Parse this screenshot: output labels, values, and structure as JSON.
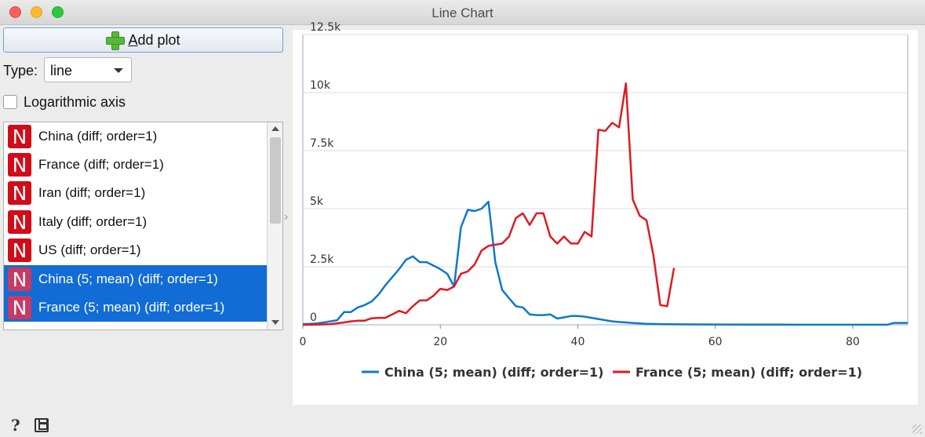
{
  "window": {
    "title": "Line Chart"
  },
  "controls": {
    "add_plot_prefix": "A",
    "add_plot_rest": "dd plot",
    "type_label": "Type:",
    "type_value": "line",
    "log_axis_label": "Logarithmic axis",
    "log_axis_checked": false
  },
  "series_list": [
    {
      "label": "China (diff; order=1)",
      "icon": "N",
      "selected": false
    },
    {
      "label": "France (diff; order=1)",
      "icon": "N",
      "selected": false
    },
    {
      "label": "Iran (diff; order=1)",
      "icon": "N",
      "selected": false
    },
    {
      "label": "Italy (diff; order=1)",
      "icon": "N",
      "selected": false
    },
    {
      "label": "US (diff; order=1)",
      "icon": "N",
      "selected": false
    },
    {
      "label": "China (5; mean) (diff; order=1)",
      "icon": "N",
      "selected": true
    },
    {
      "label": "France (5; mean) (diff; order=1)",
      "icon": "N",
      "selected": true
    }
  ],
  "icons": {
    "add": "plus-icon",
    "help": "help-icon",
    "save": "save-icon"
  },
  "chart_data": {
    "type": "line",
    "xlim": [
      0,
      88
    ],
    "ylim": [
      0,
      12500
    ],
    "x_ticks": [
      0,
      20,
      40,
      60,
      80
    ],
    "y_ticks": [
      0,
      2500,
      5000,
      7500,
      10000,
      12500
    ],
    "y_tick_labels": [
      "0",
      "2.5k",
      "5k",
      "7.5k",
      "10k",
      "12.5k"
    ],
    "grid": true,
    "legend_position": "bottom",
    "series": [
      {
        "name": "China (5; mean) (diff; order=1)",
        "color": "#0d79c9",
        "x": [
          0,
          1,
          2,
          3,
          4,
          5,
          6,
          7,
          8,
          9,
          10,
          11,
          12,
          13,
          14,
          15,
          16,
          17,
          18,
          19,
          20,
          21,
          22,
          23,
          24,
          25,
          26,
          27,
          28,
          29,
          30,
          31,
          32,
          33,
          34,
          35,
          36,
          37,
          38,
          39,
          40,
          41,
          42,
          43,
          44,
          45,
          46,
          47,
          48,
          49,
          50,
          52,
          55,
          60,
          65,
          70,
          75,
          80,
          85,
          86,
          87,
          88
        ],
        "y": [
          30,
          40,
          60,
          100,
          150,
          200,
          550,
          550,
          750,
          850,
          1000,
          1300,
          1700,
          2050,
          2400,
          2800,
          2950,
          2700,
          2700,
          2550,
          2400,
          2200,
          1650,
          4200,
          4950,
          4900,
          5000,
          5300,
          2700,
          1500,
          1150,
          800,
          750,
          450,
          420,
          420,
          450,
          270,
          320,
          380,
          380,
          350,
          300,
          250,
          200,
          150,
          120,
          100,
          80,
          60,
          40,
          30,
          20,
          15,
          10,
          8,
          5,
          5,
          5,
          80,
          80,
          80
        ]
      },
      {
        "name": "France (5; mean) (diff; order=1)",
        "color": "#de1a22",
        "x": [
          0,
          2,
          4,
          6,
          7,
          8,
          9,
          10,
          11,
          12,
          13,
          14,
          15,
          16,
          17,
          18,
          19,
          20,
          21,
          22,
          23,
          24,
          25,
          26,
          27,
          28,
          29,
          30,
          31,
          32,
          33,
          34,
          35,
          36,
          37,
          38,
          39,
          40,
          41,
          42,
          43,
          44,
          45,
          46,
          47,
          48,
          49,
          50,
          51,
          52,
          53,
          54
        ],
        "y": [
          0,
          10,
          30,
          100,
          150,
          180,
          180,
          280,
          300,
          300,
          450,
          600,
          500,
          800,
          1050,
          1050,
          1250,
          1550,
          1500,
          1650,
          2200,
          2300,
          2600,
          3200,
          3400,
          3450,
          3500,
          3800,
          4600,
          4800,
          4300,
          4800,
          4800,
          3800,
          3500,
          3800,
          3500,
          3500,
          4000,
          3800,
          8400,
          8350,
          8700,
          8500,
          10400,
          5400,
          4700,
          4500,
          3000,
          850,
          800,
          2450
        ]
      }
    ]
  }
}
